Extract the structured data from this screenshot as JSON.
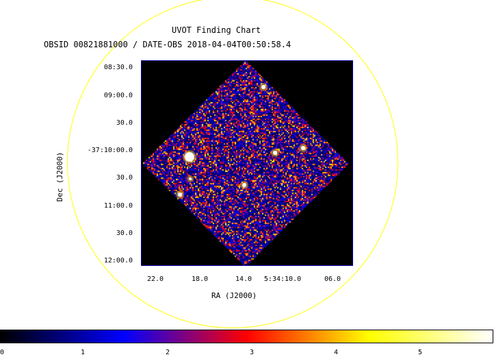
{
  "title": "UVOT Finding Chart",
  "subtitle": "OBSID 00821881000 / DATE-OBS 2018-04-04T00:50:58.4",
  "axes": {
    "xlabel": "RA (J2000)",
    "ylabel": "Dec (J2000)",
    "dec_ticks": [
      "08:30.0",
      "09:00.0",
      "30.0",
      "-37:10:00.0",
      "30.0",
      "11:00.0",
      "30.0",
      "12:00.0"
    ],
    "ra_ticks": [
      "22.0",
      "18.0",
      "14.0",
      "5:34:10.0",
      "06.0"
    ]
  },
  "colorbar": {
    "ticks": [
      "0",
      "1",
      "2",
      "3",
      "4",
      "5"
    ],
    "colors": [
      "#000000",
      "#0000ff",
      "#ff0000",
      "#ffff00",
      "#ffffff"
    ]
  },
  "colors": {
    "fov_circle": "#ffff00",
    "frame": "#0000a0",
    "background": "#000000"
  }
}
